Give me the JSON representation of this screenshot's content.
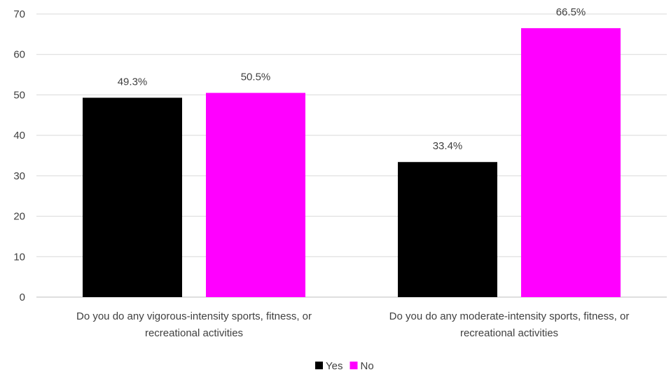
{
  "chart_data": {
    "type": "bar",
    "title": "",
    "xlabel": "",
    "ylabel": "",
    "ylim": [
      0,
      70
    ],
    "yticks": [
      0,
      10,
      20,
      30,
      40,
      50,
      60,
      70
    ],
    "grid": true,
    "legend_position": "bottom",
    "categories": [
      [
        "Do you do any vigorous-intensity sports, fitness, or",
        "recreational activities"
      ],
      [
        "Do you do any moderate-intensity sports, fitness, or",
        "recreational activities"
      ]
    ],
    "series": [
      {
        "name": "Yes",
        "color": "#000000",
        "values": [
          49.3,
          33.4
        ],
        "labels": [
          "49.3%",
          "33.4%"
        ]
      },
      {
        "name": "No",
        "color": "#ff00ff",
        "values": [
          50.5,
          66.5
        ],
        "labels": [
          "50.5%",
          "66.5%"
        ]
      }
    ]
  }
}
